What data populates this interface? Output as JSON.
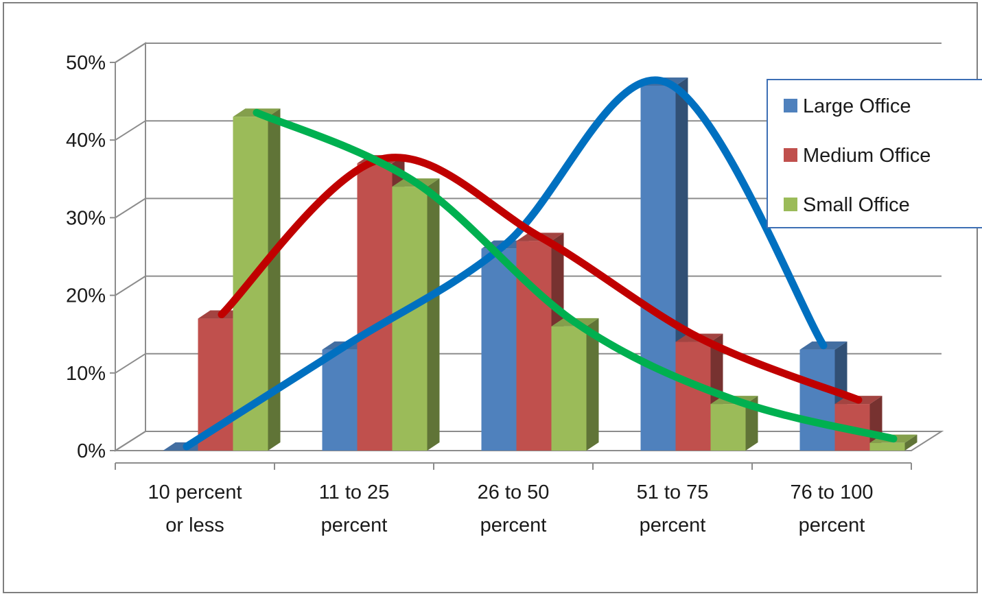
{
  "chart_data": {
    "type": "bar",
    "style": "3d clustered column with smoothed trend curves",
    "categories": [
      [
        "10 percent",
        "or less"
      ],
      [
        "11 to 25",
        "percent"
      ],
      [
        "26 to 50",
        "percent"
      ],
      [
        "51 to 75",
        "percent"
      ],
      [
        "76 to 100",
        "percent"
      ]
    ],
    "series": [
      {
        "name": "Large Office",
        "values": [
          0,
          13,
          26,
          47,
          13
        ],
        "color": "#4f81bd",
        "curve_color": "#0070c0"
      },
      {
        "name": "Medium Office",
        "values": [
          17,
          37,
          27,
          14,
          6
        ],
        "color": "#c0504d",
        "curve_color": "#c00000"
      },
      {
        "name": "Small Office",
        "values": [
          43,
          34,
          16,
          6,
          1
        ],
        "color": "#9bbb59",
        "curve_color": "#00b050"
      }
    ],
    "y_ticks": [
      "0%",
      "10%",
      "20%",
      "30%",
      "40%",
      "50%"
    ],
    "ylim": [
      0,
      50
    ],
    "grid": true,
    "legend_position": "top-right"
  }
}
